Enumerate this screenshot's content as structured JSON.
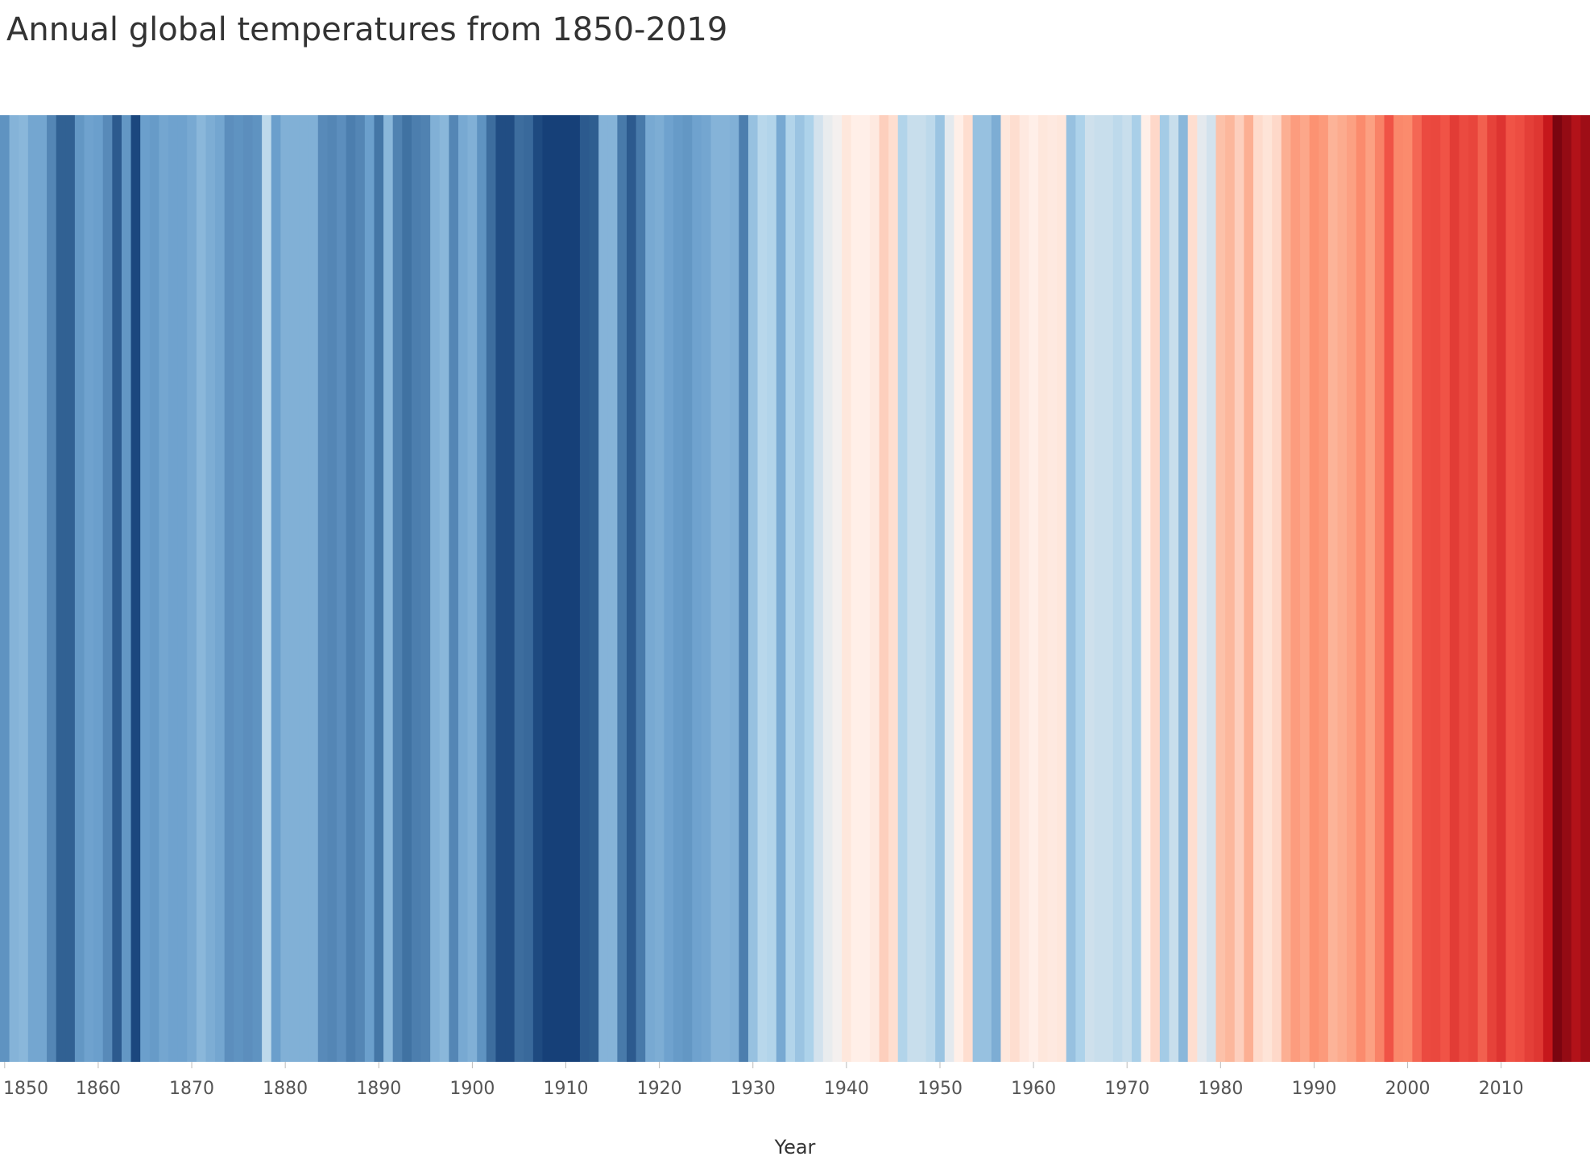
{
  "chart_data": {
    "type": "heatmap",
    "title": "Annual global temperatures from 1850-2019",
    "xlabel": "Year",
    "ylabel": "",
    "xlim": [
      1850,
      2019
    ],
    "grid": false,
    "legend": "none",
    "x_ticks": [
      1850,
      1860,
      1870,
      1880,
      1890,
      1900,
      1910,
      1920,
      1930,
      1940,
      1950,
      1960,
      1970,
      1980,
      1990,
      2000,
      2010
    ],
    "color_scale": {
      "cold": "#08306b",
      "mid": "#fff5f0",
      "hot": "#67000d",
      "range": [
        -0.6,
        1.0
      ]
    },
    "years": [
      1850,
      1851,
      1852,
      1853,
      1854,
      1855,
      1856,
      1857,
      1858,
      1859,
      1860,
      1861,
      1862,
      1863,
      1864,
      1865,
      1866,
      1867,
      1868,
      1869,
      1870,
      1871,
      1872,
      1873,
      1874,
      1875,
      1876,
      1877,
      1878,
      1879,
      1880,
      1881,
      1882,
      1883,
      1884,
      1885,
      1886,
      1887,
      1888,
      1889,
      1890,
      1891,
      1892,
      1893,
      1894,
      1895,
      1896,
      1897,
      1898,
      1899,
      1900,
      1901,
      1902,
      1903,
      1904,
      1905,
      1906,
      1907,
      1908,
      1909,
      1910,
      1911,
      1912,
      1913,
      1914,
      1915,
      1916,
      1917,
      1918,
      1919,
      1920,
      1921,
      1922,
      1923,
      1924,
      1925,
      1926,
      1927,
      1928,
      1929,
      1930,
      1931,
      1932,
      1933,
      1934,
      1935,
      1936,
      1937,
      1938,
      1939,
      1940,
      1941,
      1942,
      1943,
      1944,
      1945,
      1946,
      1947,
      1948,
      1949,
      1950,
      1951,
      1952,
      1953,
      1954,
      1955,
      1956,
      1957,
      1958,
      1959,
      1960,
      1961,
      1962,
      1963,
      1964,
      1965,
      1966,
      1967,
      1968,
      1969,
      1970,
      1971,
      1972,
      1973,
      1974,
      1975,
      1976,
      1977,
      1978,
      1979,
      1980,
      1981,
      1982,
      1983,
      1984,
      1985,
      1986,
      1987,
      1988,
      1989,
      1990,
      1991,
      1992,
      1993,
      1994,
      1995,
      1996,
      1997,
      1998,
      1999,
      2000,
      2001,
      2002,
      2003,
      2004,
      2005,
      2006,
      2007,
      2008,
      2009,
      2010,
      2011,
      2012,
      2013,
      2014,
      2015,
      2016,
      2017,
      2018,
      2019
    ],
    "values": [
      -0.33,
      -0.24,
      -0.23,
      -0.28,
      -0.28,
      -0.36,
      -0.45,
      -0.45,
      -0.32,
      -0.29,
      -0.3,
      -0.35,
      -0.47,
      -0.32,
      -0.53,
      -0.3,
      -0.31,
      -0.28,
      -0.29,
      -0.29,
      -0.27,
      -0.23,
      -0.26,
      -0.28,
      -0.34,
      -0.33,
      -0.34,
      -0.33,
      -0.12,
      -0.3,
      -0.25,
      -0.25,
      -0.25,
      -0.25,
      -0.35,
      -0.36,
      -0.34,
      -0.38,
      -0.36,
      -0.3,
      -0.4,
      -0.23,
      -0.37,
      -0.41,
      -0.38,
      -0.37,
      -0.25,
      -0.23,
      -0.36,
      -0.27,
      -0.25,
      -0.33,
      -0.42,
      -0.51,
      -0.51,
      -0.42,
      -0.43,
      -0.52,
      -0.55,
      -0.55,
      -0.55,
      -0.55,
      -0.47,
      -0.46,
      -0.24,
      -0.24,
      -0.39,
      -0.47,
      -0.39,
      -0.27,
      -0.26,
      -0.29,
      -0.31,
      -0.32,
      -0.29,
      -0.28,
      -0.24,
      -0.24,
      -0.25,
      -0.38,
      -0.2,
      -0.13,
      -0.14,
      -0.27,
      -0.14,
      -0.19,
      -0.15,
      -0.08,
      -0.04,
      -0.02,
      0.05,
      0.02,
      0.02,
      0.04,
      0.13,
      0.08,
      -0.14,
      -0.1,
      -0.1,
      -0.12,
      -0.19,
      -0.05,
      0.02,
      0.08,
      -0.2,
      -0.2,
      -0.26,
      0.05,
      0.08,
      0.04,
      0.02,
      0.05,
      0.04,
      0.05,
      -0.2,
      -0.15,
      -0.09,
      -0.1,
      -0.1,
      -0.12,
      -0.1,
      -0.16,
      0.02,
      0.1,
      -0.17,
      -0.1,
      -0.23,
      0.08,
      -0.05,
      -0.08,
      0.18,
      0.22,
      0.13,
      0.26,
      0.09,
      0.06,
      0.1,
      0.26,
      0.35,
      0.3,
      0.4,
      0.36,
      0.24,
      0.28,
      0.33,
      0.42,
      0.33,
      0.45,
      0.59,
      0.43,
      0.42,
      0.53,
      0.62,
      0.63,
      0.59,
      0.67,
      0.62,
      0.64,
      0.55,
      0.65,
      0.7,
      0.59,
      0.61,
      0.66,
      0.69,
      0.81,
      0.96,
      0.91,
      0.85,
      0.89
    ]
  }
}
